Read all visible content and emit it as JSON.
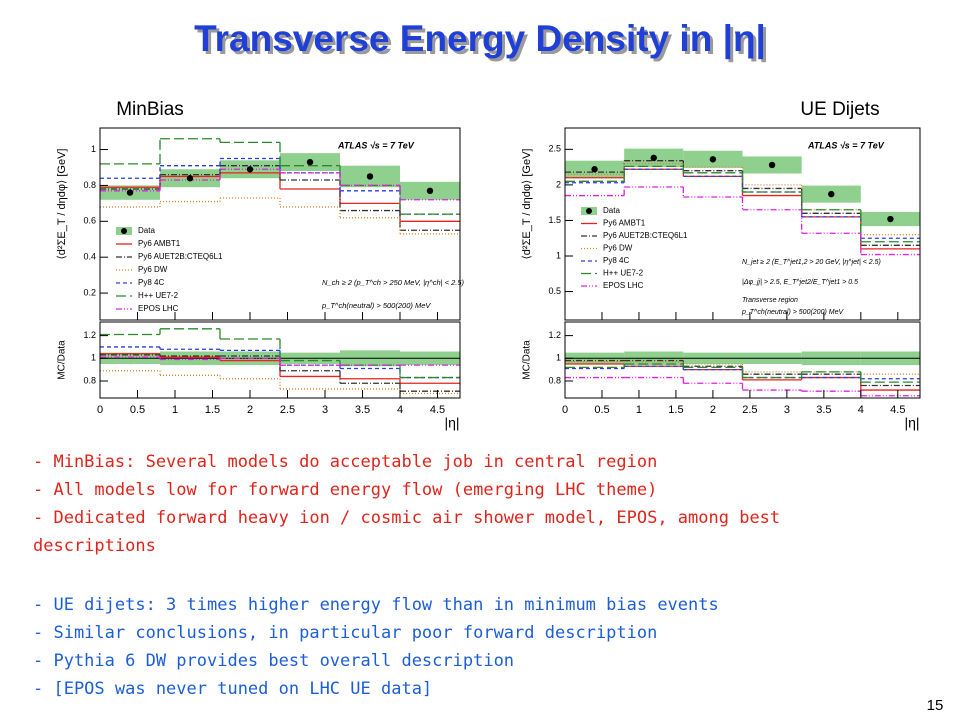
{
  "title": "Transverse Energy Density in |η|",
  "chart_data": [
    {
      "type": "histogram",
      "panel_label": "MinBias",
      "y_label": "⟨d²ΣE_T / dηdφ⟩ [GeV]",
      "ratio_label": "MC/Data",
      "x_label": "|η|",
      "bins": [
        0,
        0.8,
        1.6,
        2.4,
        3.2,
        4.0,
        4.8
      ],
      "xlim": [
        0,
        4.8
      ],
      "xticks": [
        0,
        0.5,
        1,
        1.5,
        2,
        2.5,
        3,
        3.5,
        4,
        4.5
      ],
      "ylim": [
        0.05,
        1.12
      ],
      "yticks": [
        0.2,
        0.4,
        0.6,
        0.8,
        1
      ],
      "ratio_ylim": [
        0.65,
        1.32
      ],
      "ratio_yticks": [
        0.8,
        1,
        1.2
      ],
      "ratio_reference": 1,
      "data": {
        "name": "Data",
        "color": "#000000",
        "band_color": "#8fd08f",
        "values": [
          0.76,
          0.84,
          0.89,
          0.93,
          0.85,
          0.77
        ],
        "errors": [
          0.04,
          0.05,
          0.05,
          0.05,
          0.06,
          0.05
        ],
        "ratio_errors": [
          0.05,
          0.06,
          0.06,
          0.05,
          0.07,
          0.06
        ]
      },
      "series": [
        {
          "name": "Py6 AMBT1",
          "color": "#e8231d",
          "style": "solid",
          "values": [
            0.79,
            0.85,
            0.87,
            0.78,
            0.7,
            0.6
          ],
          "ratio": [
            1.04,
            1.01,
            0.98,
            0.84,
            0.82,
            0.78
          ]
        },
        {
          "name": "Py6 AUET2B:CTEQ6L1",
          "color": "#333333",
          "style": "dashdot",
          "values": [
            0.78,
            0.86,
            0.91,
            0.83,
            0.66,
            0.55
          ],
          "ratio": [
            1.03,
            1.02,
            1.02,
            0.89,
            0.78,
            0.71
          ]
        },
        {
          "name": "Py6 DW",
          "color": "#d9822b",
          "style": "dotted",
          "values": [
            0.68,
            0.71,
            0.73,
            0.68,
            0.62,
            0.53
          ],
          "ratio": [
            0.89,
            0.85,
            0.82,
            0.73,
            0.73,
            0.69
          ]
        },
        {
          "name": "Py8 4C",
          "color": "#2b3de0",
          "style": "dash",
          "values": [
            0.84,
            0.91,
            0.95,
            0.87,
            0.77,
            0.64
          ],
          "ratio": [
            1.1,
            1.08,
            1.07,
            0.94,
            0.91,
            0.83
          ]
        },
        {
          "name": "H++ UE7-2",
          "color": "#2a8a2a",
          "style": "longdash",
          "values": [
            0.92,
            1.06,
            1.04,
            0.91,
            0.8,
            0.64
          ],
          "ratio": [
            1.21,
            1.26,
            1.17,
            0.98,
            0.94,
            0.83
          ]
        },
        {
          "name": "EPOS LHC",
          "color": "#e020e0",
          "style": "dashdotdot",
          "values": [
            0.77,
            0.83,
            0.89,
            0.87,
            0.8,
            0.72
          ],
          "ratio": [
            1.01,
            0.99,
            1.0,
            0.94,
            0.94,
            0.94
          ]
        }
      ],
      "annotations": [
        "ATLAS  √s = 7 TeV",
        "N_ch ≥ 2 (p_T^ch > 250 MeV, |η^ch| < 2.5)",
        "p_T^ch(neutral) > 500(200) MeV"
      ]
    },
    {
      "type": "histogram",
      "panel_label": "UE Dijets",
      "y_label": "⟨d²ΣE_T / dηdφ⟩ [GeV]",
      "ratio_label": "MC/Data",
      "x_label": "|η|",
      "bins": [
        0,
        0.8,
        1.6,
        2.4,
        3.2,
        4.0,
        4.8
      ],
      "xlim": [
        0,
        4.8
      ],
      "xticks": [
        0,
        0.5,
        1,
        1.5,
        2,
        2.5,
        3,
        3.5,
        4,
        4.5
      ],
      "ylim": [
        0.1,
        2.8
      ],
      "yticks": [
        0.5,
        1,
        1.5,
        2,
        2.5
      ],
      "ratio_ylim": [
        0.65,
        1.32
      ],
      "ratio_yticks": [
        0.8,
        1,
        1.2
      ],
      "ratio_reference": 1,
      "data": {
        "name": "Data",
        "color": "#000000",
        "band_color": "#8fd08f",
        "values": [
          2.22,
          2.38,
          2.36,
          2.28,
          1.87,
          1.52
        ],
        "errors": [
          0.12,
          0.13,
          0.12,
          0.12,
          0.12,
          0.1
        ],
        "ratio_errors": [
          0.05,
          0.06,
          0.05,
          0.05,
          0.06,
          0.06
        ]
      },
      "series": [
        {
          "name": "Py6 AMBT1",
          "color": "#e8231d",
          "style": "solid",
          "values": [
            2.1,
            2.22,
            2.12,
            1.85,
            1.55,
            1.1
          ],
          "ratio": [
            0.95,
            0.93,
            0.9,
            0.81,
            0.83,
            0.72
          ]
        },
        {
          "name": "Py6 AUET2B:CTEQ6L1",
          "color": "#333333",
          "style": "dashdot",
          "values": [
            2.18,
            2.34,
            2.2,
            1.95,
            1.6,
            1.15
          ],
          "ratio": [
            0.98,
            0.98,
            0.93,
            0.86,
            0.86,
            0.76
          ]
        },
        {
          "name": "Py6 DW",
          "color": "#d9822b",
          "style": "dotted",
          "values": [
            2.15,
            2.3,
            2.25,
            2.0,
            1.65,
            1.3
          ],
          "ratio": [
            0.97,
            0.97,
            0.95,
            0.88,
            0.88,
            0.86
          ]
        },
        {
          "name": "Py8 4C",
          "color": "#2b3de0",
          "style": "dash",
          "values": [
            2.03,
            2.22,
            2.12,
            1.9,
            1.55,
            1.25
          ],
          "ratio": [
            0.91,
            0.93,
            0.9,
            0.83,
            0.83,
            0.82
          ]
        },
        {
          "name": "H++ UE7-2",
          "color": "#2a8a2a",
          "style": "longdash",
          "values": [
            2.05,
            2.26,
            2.17,
            1.9,
            1.65,
            1.2
          ],
          "ratio": [
            0.92,
            0.95,
            0.92,
            0.83,
            0.88,
            0.79
          ]
        },
        {
          "name": "EPOS LHC",
          "color": "#e020e0",
          "style": "dashdotdot",
          "values": [
            1.85,
            1.97,
            1.83,
            1.65,
            1.32,
            1.02
          ],
          "ratio": [
            0.83,
            0.83,
            0.78,
            0.72,
            0.71,
            0.67
          ]
        }
      ],
      "annotations": [
        "ATLAS  √s = 7 TeV",
        "N_jet ≥ 2 (E_T^jet1,2 > 20 GeV, |η^jet| < 2.5)",
        "|Δφ_jj| > 2.5, E_T^jet2/E_T^jet1 > 0.5",
        "Transverse region",
        "p_T^ch(neutral) > 500(200) MeV"
      ]
    }
  ],
  "bullets_minbias": [
    "- MinBias: Several models do acceptable job in central region",
    "- All models low for forward energy flow (emerging LHC theme)",
    "- Dedicated forward heavy ion / cosmic air shower model, EPOS, among best descriptions"
  ],
  "bullets_dijets": [
    "- UE dijets: 3 times higher energy flow than in minimum bias events",
    "- Similar conclusions, in particular poor forward description",
    "- Pythia 6 DW provides best overall description",
    "- [EPOS was never tuned on LHC UE data]"
  ],
  "page_number": "15"
}
